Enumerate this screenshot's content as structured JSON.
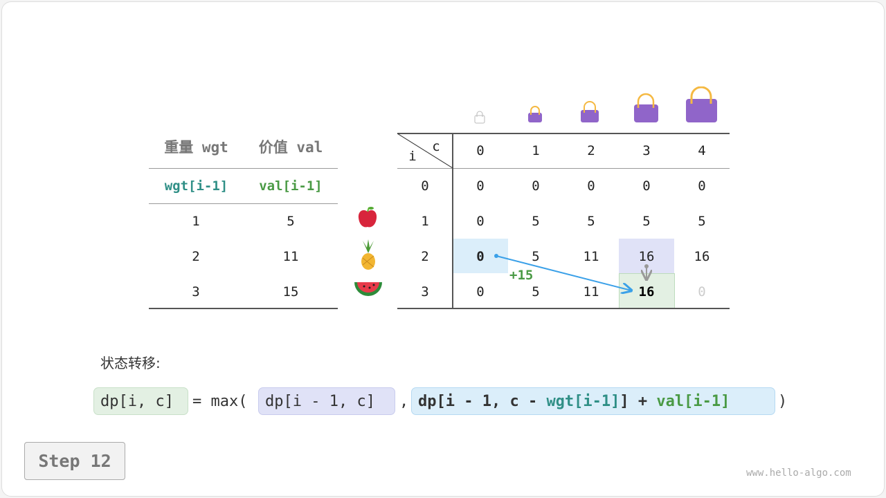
{
  "left_table": {
    "headers": [
      "重量 wgt",
      "价值 val"
    ],
    "subheaders": [
      "wgt[i-1]",
      "val[i-1]"
    ],
    "rows": [
      [
        "1",
        "5"
      ],
      [
        "2",
        "11"
      ],
      [
        "3",
        "15"
      ]
    ]
  },
  "items": [
    "apple-icon",
    "pineapple-icon",
    "watermelon-icon"
  ],
  "dp_table": {
    "corner_row": "i",
    "corner_col": "c",
    "cols": [
      "0",
      "1",
      "2",
      "3",
      "4"
    ],
    "row_labels": [
      "0",
      "1",
      "2",
      "3"
    ],
    "rows": [
      [
        "0",
        "0",
        "0",
        "0",
        "0"
      ],
      [
        "0",
        "5",
        "5",
        "5",
        "5"
      ],
      [
        "0",
        "5",
        "11",
        "16",
        "16"
      ],
      [
        "0",
        "5",
        "11",
        "16",
        "0"
      ]
    ]
  },
  "annotation": "+15",
  "transition_label": "状态转移:",
  "formula": {
    "lhs": "dp[i, c]",
    "eq": "= max(",
    "opt1": "dp[i - 1, c]",
    "comma": ",",
    "opt2_a": "dp[i - 1, c - ",
    "opt2_wgt": "wgt[i-1]",
    "opt2_b": "] + ",
    "opt2_val": "val[i-1]",
    "close": ")"
  },
  "step_label": "Step 12",
  "watermark": "www.hello-algo.com",
  "colors": {
    "wgt": "#2f8f86",
    "val": "#4a9a45",
    "highlight_src": "#dbeefa",
    "highlight_up": "#e0e2f7",
    "highlight_target": "#e3f0e3",
    "arrow": "#3aa0e8",
    "bag": "#9065c9"
  }
}
